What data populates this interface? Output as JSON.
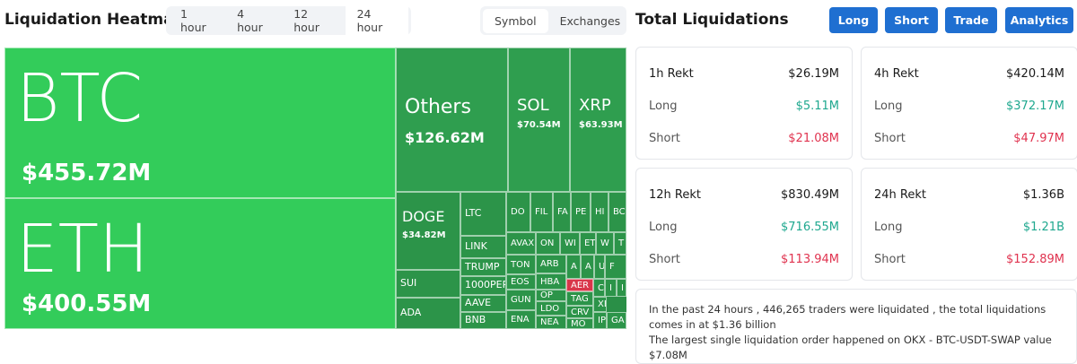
{
  "header": {
    "title": "Liquidation Heatmap",
    "time_tabs": [
      "1 hour",
      "4 hour",
      "12 hour",
      "24 hour"
    ],
    "view_tabs": [
      "Symbol",
      "Exchanges"
    ]
  },
  "heatmap": {
    "tiles": [
      {
        "label": "BTC",
        "value": "$455.72M"
      },
      {
        "label": "ETH",
        "value": "$400.55M"
      },
      {
        "label": "Others",
        "value": "$126.62M"
      },
      {
        "label": "SOL",
        "value": "$70.54M"
      },
      {
        "label": "XRP",
        "value": "$63.93M"
      },
      {
        "label": "DOGE",
        "value": "$34.82M"
      },
      {
        "label": "SUI"
      },
      {
        "label": "ADA"
      },
      {
        "label": "LTC"
      },
      {
        "label": "LINK"
      },
      {
        "label": "TRUMP"
      },
      {
        "label": "1000PEP"
      },
      {
        "label": "AAVE"
      },
      {
        "label": "BNB"
      },
      {
        "label": "DO"
      },
      {
        "label": "FIL"
      },
      {
        "label": "FA"
      },
      {
        "label": "PE"
      },
      {
        "label": "HI"
      },
      {
        "label": "BC"
      },
      {
        "label": "AVAX"
      },
      {
        "label": "ON"
      },
      {
        "label": "WI"
      },
      {
        "label": "ET"
      },
      {
        "label": "W"
      },
      {
        "label": "T"
      },
      {
        "label": "TON"
      },
      {
        "label": "ARB"
      },
      {
        "label": "A"
      },
      {
        "label": "A"
      },
      {
        "label": "U"
      },
      {
        "label": "F"
      },
      {
        "label": "EOS"
      },
      {
        "label": "HBA"
      },
      {
        "label": "AER"
      },
      {
        "label": "C"
      },
      {
        "label": "I"
      },
      {
        "label": "I"
      },
      {
        "label": "GUN"
      },
      {
        "label": "OP"
      },
      {
        "label": "TAG"
      },
      {
        "label": "XE"
      },
      {
        "label": "ENA"
      },
      {
        "label": "LDO"
      },
      {
        "label": "CRV"
      },
      {
        "label": "NEA"
      },
      {
        "label": "MO"
      },
      {
        "label": "IP"
      },
      {
        "label": "GA"
      }
    ]
  },
  "totals": {
    "title": "Total Liquidations",
    "buttons": [
      "Long",
      "Short",
      "Trade",
      "Analytics"
    ],
    "cards": [
      {
        "title": "1h Rekt",
        "total": "$26.19M",
        "long_label": "Long",
        "long": "$5.11M",
        "short_label": "Short",
        "short": "$21.08M"
      },
      {
        "title": "4h Rekt",
        "total": "$420.14M",
        "long_label": "Long",
        "long": "$372.17M",
        "short_label": "Short",
        "short": "$47.97M"
      },
      {
        "title": "12h Rekt",
        "total": "$830.49M",
        "long_label": "Long",
        "long": "$716.55M",
        "short_label": "Short",
        "short": "$113.94M"
      },
      {
        "title": "24h Rekt",
        "total": "$1.36B",
        "long_label": "Long",
        "long": "$1.21B",
        "short_label": "Short",
        "short": "$152.89M"
      }
    ]
  },
  "summary": {
    "lines": [
      "In the past 24 hours , 446,265 traders were liquidated , the total liquidations comes in at $1.36 billion",
      "The largest single liquidation order happened on OKX - BTC-USDT-SWAP value $7.08M"
    ]
  }
}
